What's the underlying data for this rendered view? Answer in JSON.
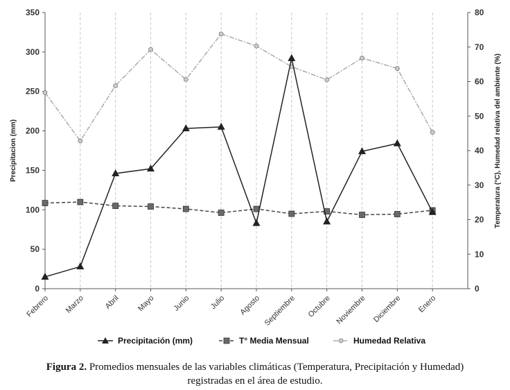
{
  "chart_data": {
    "type": "line",
    "categories": [
      "Febrero",
      "Marzo",
      "Abril",
      "Mayo",
      "Junio",
      "Julio",
      "Agosto",
      "Septiembre",
      "Octubre",
      "Noviembre",
      "Diciembre",
      "Enero"
    ],
    "left_axis": {
      "label": "Precipitacion (mm)",
      "range": [
        0,
        350
      ],
      "ticks": [
        "0",
        "50",
        "100",
        "150",
        "200",
        "250",
        "300",
        "350"
      ]
    },
    "right_axis": {
      "label": "Temperatura (°C), Humedad relativa del ambiente (%)",
      "range": [
        0,
        80
      ],
      "ticks": [
        "0",
        "10",
        "20",
        "30",
        "40",
        "50",
        "60",
        "70",
        "80"
      ]
    },
    "series": [
      {
        "name": "Precipitación (mm)",
        "axis": "left",
        "style": "solid",
        "marker": "triangle",
        "color": "#222222",
        "values": [
          15,
          28,
          146,
          152,
          203,
          205,
          83,
          292,
          85,
          174,
          184,
          97
        ]
      },
      {
        "name": "T° Media Mensual",
        "axis": "right",
        "style": "dashed",
        "marker": "square",
        "color": "#444444",
        "values": [
          24.8,
          25.1,
          24.0,
          23.8,
          23.1,
          22.0,
          23.1,
          21.7,
          22.4,
          21.4,
          21.6,
          22.7
        ]
      },
      {
        "name": "Humedad Relativa",
        "axis": "right",
        "style": "dashdot",
        "marker": "circle",
        "color": "#aaaaaa",
        "values": [
          56.8,
          42.8,
          58.8,
          69.3,
          60.6,
          73.8,
          70.3,
          64.3,
          60.5,
          66.8,
          63.8,
          45.3
        ]
      }
    ],
    "grid": "vertical-dashed"
  },
  "caption": {
    "label": "Figura 2.",
    "line1": "Promedios mensuales de las variables climáticas (Temperatura, Precipitación y Humedad)",
    "line2": "registradas en el área de estudio."
  }
}
